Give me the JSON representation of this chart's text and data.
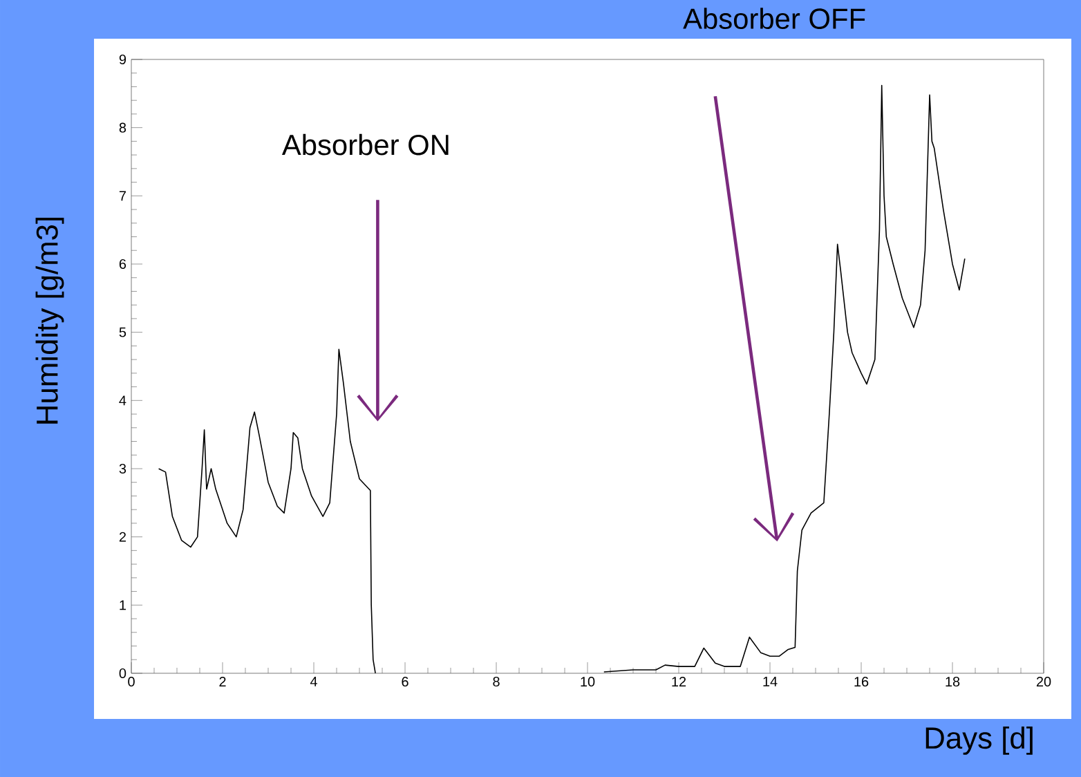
{
  "chart_data": {
    "type": "line",
    "xlabel": "Days [d]",
    "ylabel": "Humidity [g/m3]",
    "x": [
      0.6,
      0.75,
      0.9,
      1.1,
      1.3,
      1.45,
      1.55,
      1.6,
      1.65,
      1.75,
      1.85,
      2.1,
      2.3,
      2.45,
      2.6,
      2.7,
      2.8,
      3.0,
      3.2,
      3.35,
      3.5,
      3.55,
      3.65,
      3.75,
      3.95,
      4.2,
      4.35,
      4.5,
      4.55,
      4.65,
      4.8,
      5.0,
      5.24,
      5.26,
      5.3,
      5.35,
      7.5,
      10.36,
      11.0,
      11.5,
      11.7,
      12.0,
      12.35,
      12.55,
      12.8,
      13.0,
      13.35,
      13.55,
      13.8,
      14.0,
      14.2,
      14.4,
      14.55,
      14.6,
      14.7,
      14.9,
      15.18,
      15.3,
      15.4,
      15.48,
      15.55,
      15.7,
      15.8,
      16.0,
      16.12,
      16.3,
      16.4,
      16.45,
      16.5,
      16.55,
      16.7,
      16.9,
      17.15,
      17.3,
      17.4,
      17.5,
      17.55,
      17.6,
      17.8,
      18.0,
      18.15,
      18.27
    ],
    "values": [
      3.0,
      2.95,
      2.3,
      1.95,
      1.85,
      2.0,
      3.0,
      3.57,
      2.7,
      3.0,
      2.7,
      2.2,
      2.0,
      2.4,
      3.6,
      3.83,
      3.5,
      2.8,
      2.45,
      2.35,
      3.0,
      3.53,
      3.45,
      3.0,
      2.6,
      2.3,
      2.5,
      3.8,
      4.75,
      4.25,
      3.4,
      2.85,
      2.68,
      1.0,
      0.2,
      0.0,
      null,
      0.02,
      0.05,
      0.05,
      0.12,
      0.1,
      0.1,
      0.37,
      0.15,
      0.1,
      0.1,
      0.53,
      0.3,
      0.25,
      0.25,
      0.35,
      0.38,
      1.5,
      2.1,
      2.35,
      2.5,
      3.8,
      5.0,
      6.29,
      5.9,
      5.0,
      4.7,
      4.4,
      4.24,
      4.6,
      6.5,
      8.62,
      7.0,
      6.4,
      6.0,
      5.5,
      5.07,
      5.4,
      6.2,
      8.48,
      7.8,
      7.7,
      6.8,
      6.0,
      5.62,
      6.08
    ],
    "color": "#000000",
    "xlim": [
      0,
      20
    ],
    "ylim": [
      0,
      9
    ],
    "xticks": [
      0,
      2,
      4,
      6,
      8,
      10,
      12,
      14,
      16,
      18,
      20
    ],
    "yticks": [
      0,
      1,
      2,
      3,
      4,
      5,
      6,
      7,
      8,
      9
    ],
    "grid": false,
    "marker": "none",
    "line_style": "solid",
    "annotations": [
      "Absorber ON",
      "Absorber OFF"
    ]
  }
}
